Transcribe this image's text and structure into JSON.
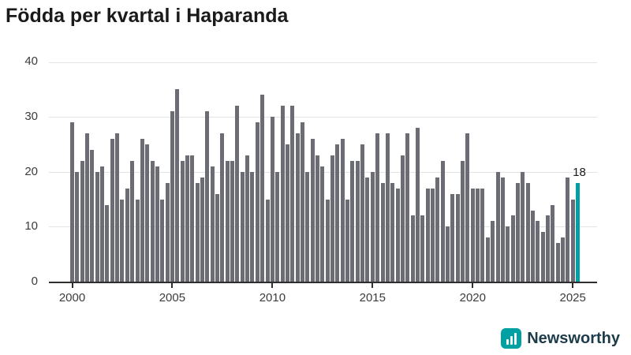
{
  "title": "Födda per kvartal i Haparanda",
  "annotation_label": "18",
  "brand": "Newsworthy",
  "colors": {
    "bar": "#6c6c74",
    "highlight": "#00a0a3",
    "gridline": "#e3e3e3",
    "axis": "#2e2e2e",
    "text": "#3c3c3c",
    "title": "#1a1a1a",
    "brand_text": "#1d3b4b"
  },
  "chart_data": {
    "type": "bar",
    "title": "Födda per kvartal i Haparanda",
    "frequency": "quarterly",
    "x_start": "2000Q1",
    "x_end": "2025Q2",
    "xlabel": "",
    "ylabel": "",
    "ylim": [
      0,
      40
    ],
    "grid": true,
    "y_ticks": [
      "40",
      "30",
      "20",
      "10",
      "0"
    ],
    "x_ticks": [
      "2000",
      "2005",
      "2010",
      "2015",
      "2020",
      "2025"
    ],
    "highlight_last_bar": true,
    "last_bar_label": "18",
    "values": [
      29,
      20,
      22,
      27,
      24,
      20,
      21,
      14,
      26,
      27,
      15,
      17,
      22,
      15,
      26,
      25,
      22,
      21,
      15,
      18,
      31,
      35,
      22,
      23,
      23,
      18,
      19,
      31,
      21,
      16,
      27,
      22,
      22,
      32,
      20,
      23,
      20,
      29,
      34,
      15,
      30,
      20,
      32,
      25,
      32,
      27,
      29,
      20,
      26,
      23,
      21,
      15,
      23,
      25,
      26,
      15,
      22,
      22,
      25,
      19,
      20,
      27,
      18,
      27,
      18,
      17,
      23,
      27,
      12,
      28,
      12,
      17,
      17,
      19,
      22,
      10,
      16,
      16,
      22,
      27,
      17,
      17,
      17,
      8,
      11,
      20,
      19,
      10,
      12,
      18,
      20,
      18,
      13,
      11,
      9,
      12,
      14,
      7,
      8,
      19,
      15,
      18
    ]
  }
}
